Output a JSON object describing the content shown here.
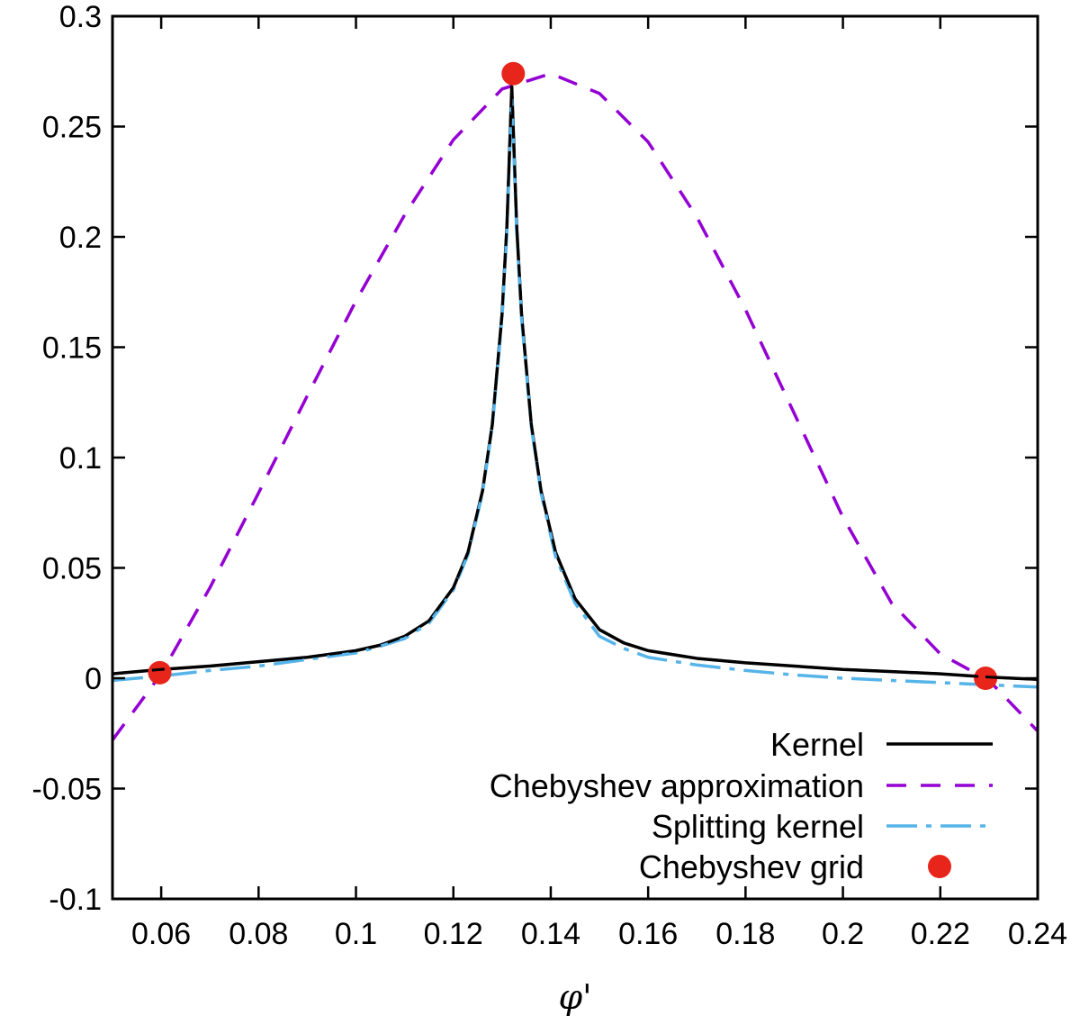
{
  "chart_data": {
    "type": "line",
    "title": "",
    "xlabel": "φ'",
    "ylabel": "",
    "xlim": [
      0.05,
      0.24
    ],
    "ylim": [
      -0.1,
      0.3
    ],
    "xticks": [
      "0.06",
      "0.08",
      "0.1",
      "0.12",
      "0.14",
      "0.16",
      "0.18",
      "0.2",
      "0.22",
      "0.24"
    ],
    "yticks": [
      "-0.1",
      "-0.05",
      "0",
      "0.05",
      "0.1",
      "0.15",
      "0.2",
      "0.25",
      "0.3"
    ],
    "grid": false,
    "legend_position": "bottom-right",
    "series": [
      {
        "name": "Kernel",
        "style": "solid",
        "color": "#000000",
        "x": [
          0.05,
          0.06,
          0.07,
          0.08,
          0.09,
          0.1,
          0.105,
          0.11,
          0.115,
          0.12,
          0.123,
          0.126,
          0.128,
          0.13,
          0.131,
          0.132,
          0.133,
          0.134,
          0.136,
          0.138,
          0.141,
          0.145,
          0.15,
          0.155,
          0.16,
          0.17,
          0.18,
          0.19,
          0.2,
          0.21,
          0.22,
          0.23,
          0.24
        ],
        "y": [
          0.002,
          0.004,
          0.0055,
          0.0075,
          0.0095,
          0.0125,
          0.015,
          0.019,
          0.026,
          0.041,
          0.057,
          0.085,
          0.115,
          0.165,
          0.205,
          0.268,
          0.205,
          0.165,
          0.115,
          0.085,
          0.057,
          0.036,
          0.022,
          0.016,
          0.0125,
          0.009,
          0.007,
          0.0055,
          0.004,
          0.003,
          0.002,
          0.0005,
          -0.0005
        ]
      },
      {
        "name": "Chebyshev approximation",
        "style": "dashed",
        "color": "#9400d3",
        "x": [
          0.05,
          0.06,
          0.07,
          0.08,
          0.09,
          0.1,
          0.11,
          0.12,
          0.13,
          0.14,
          0.15,
          0.16,
          0.17,
          0.18,
          0.19,
          0.2,
          0.21,
          0.22,
          0.23,
          0.24
        ],
        "y": [
          -0.028,
          0.002,
          0.041,
          0.084,
          0.128,
          0.171,
          0.21,
          0.244,
          0.267,
          0.274,
          0.265,
          0.243,
          0.209,
          0.167,
          0.12,
          0.073,
          0.034,
          0.011,
          -0.001,
          -0.024
        ]
      },
      {
        "name": "Splitting kernel",
        "style": "dash-dot",
        "color": "#56b4e9",
        "x": [
          0.05,
          0.06,
          0.07,
          0.08,
          0.09,
          0.1,
          0.105,
          0.11,
          0.115,
          0.12,
          0.123,
          0.126,
          0.128,
          0.13,
          0.131,
          0.132,
          0.133,
          0.134,
          0.136,
          0.138,
          0.141,
          0.145,
          0.15,
          0.155,
          0.16,
          0.17,
          0.18,
          0.19,
          0.2,
          0.21,
          0.22,
          0.23,
          0.24
        ],
        "y": [
          -0.001,
          0.001,
          0.0035,
          0.0055,
          0.0085,
          0.0115,
          0.0145,
          0.018,
          0.025,
          0.04,
          0.056,
          0.084,
          0.114,
          0.163,
          0.202,
          0.263,
          0.202,
          0.163,
          0.114,
          0.084,
          0.055,
          0.034,
          0.019,
          0.0135,
          0.0095,
          0.006,
          0.0035,
          0.0015,
          0.0,
          -0.001,
          -0.002,
          -0.003,
          -0.004
        ]
      },
      {
        "name": "Chebyshev grid",
        "style": "points",
        "color": "#e8251b",
        "x": [
          0.0597,
          0.1323,
          0.2293
        ],
        "y": [
          0.0025,
          0.274,
          0.0
        ]
      }
    ]
  }
}
